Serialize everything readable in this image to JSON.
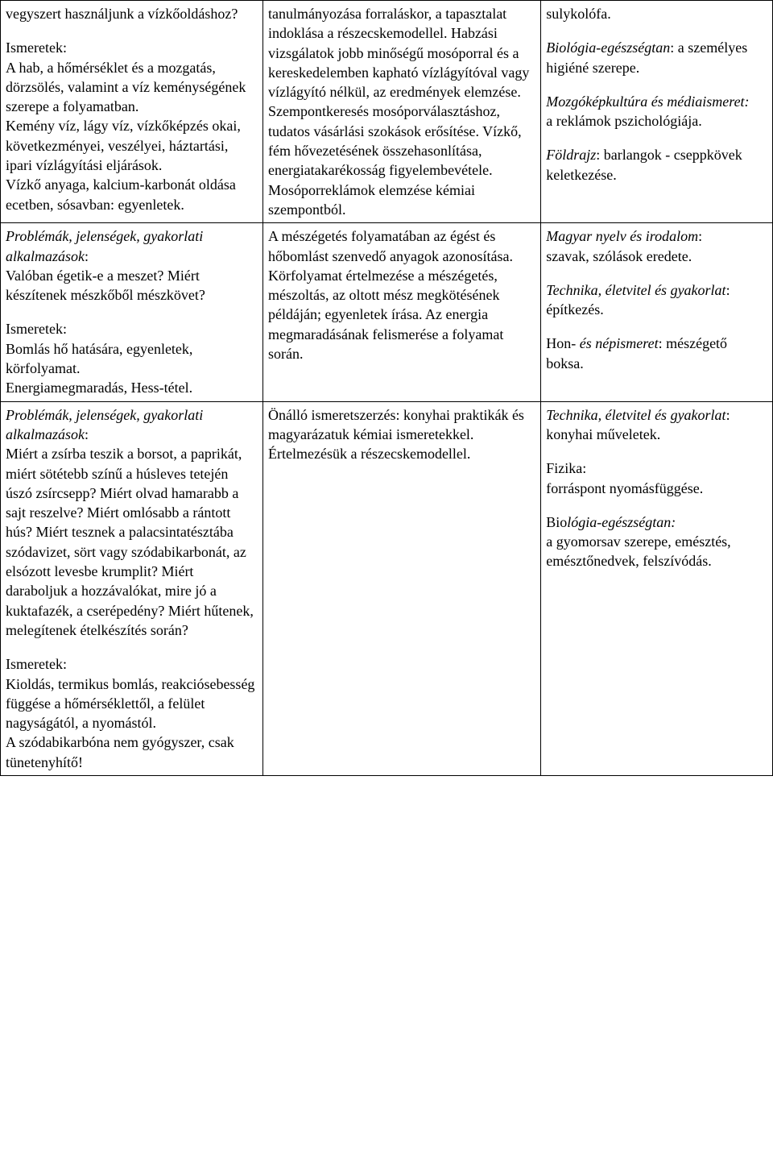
{
  "table": {
    "rows": [
      {
        "col1": {
          "segments": [
            {
              "text": "vegyszert használjunk a vízkőoldáshoz?",
              "style": "normal"
            },
            {
              "text": "",
              "style": "spacer"
            },
            {
              "text": "Ismeretek:",
              "style": "normal"
            },
            {
              "text": "A hab, a hőmérséklet és a mozgatás, dörzsölés, valamint a víz keménységének szerepe a folyamatban.",
              "style": "normal"
            },
            {
              "text": "Kemény víz, lágy víz, vízkőképzés okai, következményei, veszélyei, háztartási, ipari vízlágyítási eljárások.",
              "style": "normal"
            },
            {
              "text": "Vízkő anyaga, kalcium-karbonát oldása ecetben, sósavban: egyenletek.",
              "style": "normal"
            }
          ]
        },
        "col2": {
          "segments": [
            {
              "text": "tanulmányozása forraláskor, a tapasztalat indoklása a részecskemodellel. Habzási vizsgálatok jobb minőségű mosóporral és a kereskedelemben kapható vízlágyítóval vagy vízlágyító nélkül, az eredmények elemzése. Szempontkeresés mosóporválasztáshoz, tudatos vásárlási szokások erősítése. Vízkő, fém hővezetésének összehasonlítása, energiatakarékosság figyelembevétele. Mosóporreklámok elemzése kémiai szempontból.",
              "style": "normal"
            }
          ]
        },
        "col3": {
          "segments": [
            {
              "text": "sulykolófa.",
              "style": "normal"
            },
            {
              "text": "",
              "style": "spacer"
            },
            {
              "textParts": [
                {
                  "t": "Biológia-egészségtan",
                  "s": "italic"
                },
                {
                  "t": ": a személyes higiéné szerepe.",
                  "s": "normal"
                }
              ]
            },
            {
              "text": "",
              "style": "spacer"
            },
            {
              "textParts": [
                {
                  "t": "Mozgóképkultúra és médiaismeret:",
                  "s": "italic"
                }
              ]
            },
            {
              "text": "a reklámok pszichológiája.",
              "style": "normal"
            },
            {
              "text": "",
              "style": "spacer"
            },
            {
              "textParts": [
                {
                  "t": "Földrajz",
                  "s": "italic"
                },
                {
                  "t": ": barlangok - cseppkövek keletkezése.",
                  "s": "normal"
                }
              ]
            }
          ]
        }
      },
      {
        "col1": {
          "segments": [
            {
              "textParts": [
                {
                  "t": "Problémák, jelenségek, gyakorlati alkalmazások",
                  "s": "italic"
                },
                {
                  "t": ":",
                  "s": "normal"
                }
              ]
            },
            {
              "text": "Valóban égetik-e a meszet? Miért készítenek mészkőből mészkövet?",
              "style": "normal"
            },
            {
              "text": "",
              "style": "spacer"
            },
            {
              "text": "Ismeretek:",
              "style": "normal"
            },
            {
              "text": "Bomlás hő hatására, egyenletek, körfolyamat.",
              "style": "normal"
            },
            {
              "text": "Energiamegmaradás, Hess-tétel.",
              "style": "normal"
            }
          ]
        },
        "col2": {
          "segments": [
            {
              "text": "A mészégetés folyamatában az égést és hőbomlást szenvedő anyagok azonosítása. Körfolyamat értelmezése a mészégetés, mészoltás, az oltott mész megkötésének példáján; egyenletek írása. Az energia megmaradásának felismerése a folyamat során.",
              "style": "normal"
            }
          ]
        },
        "col3": {
          "segments": [
            {
              "textParts": [
                {
                  "t": "Magyar nyelv és irodalom",
                  "s": "italic"
                },
                {
                  "t": ":",
                  "s": "normal"
                }
              ]
            },
            {
              "text": "szavak, szólások eredete.",
              "style": "normal"
            },
            {
              "text": "",
              "style": "spacer"
            },
            {
              "textParts": [
                {
                  "t": "Technika, életvitel és gyakorlat",
                  "s": "italic"
                },
                {
                  "t": ":",
                  "s": "normal"
                }
              ]
            },
            {
              "text": "építkezés.",
              "style": "normal"
            },
            {
              "text": "",
              "style": "spacer"
            },
            {
              "textParts": [
                {
                  "t": "Hon- ",
                  "s": "normal"
                },
                {
                  "t": "és népismeret",
                  "s": "italic"
                },
                {
                  "t": ": mészégető boksa.",
                  "s": "normal"
                }
              ]
            }
          ]
        }
      },
      {
        "col1": {
          "segments": [
            {
              "textParts": [
                {
                  "t": "Problémák, jelenségek, gyakorlati alkalmazások",
                  "s": "italic"
                },
                {
                  "t": ":",
                  "s": "normal"
                }
              ]
            },
            {
              "text": "Miért a zsírba teszik a borsot, a paprikát, miért sötétebb színű a húsleves tetején úszó zsírcsepp? Miért olvad hamarabb a sajt reszelve? Miért omlósabb a rántott hús? Miért tesznek a palacsintatésztába szódavizet, sört vagy szódabikarbonát, az elsózott levesbe krumplit? Miért daraboljuk a hozzávalókat, mire jó a kuktafazék, a cserépedény? Miért hűtenek, melegítenek ételkészítés során?",
              "style": "normal"
            },
            {
              "text": "",
              "style": "spacer"
            },
            {
              "text": "Ismeretek:",
              "style": "normal"
            },
            {
              "text": "Kioldás, termikus bomlás, reakciósebesség függése a hőmérséklettől, a felület nagyságától, a nyomástól.",
              "style": "normal"
            },
            {
              "text": "A szódabikarbóna nem gyógyszer, csak tünetenyhítő!",
              "style": "normal"
            }
          ]
        },
        "col2": {
          "segments": [
            {
              "text": "Önálló ismeretszerzés: konyhai praktikák és magyarázatuk kémiai ismeretekkel. Értelmezésük a részecskemodellel.",
              "style": "normal"
            }
          ]
        },
        "col3": {
          "segments": [
            {
              "textParts": [
                {
                  "t": "Technika, életvitel és gyakorlat",
                  "s": "italic"
                },
                {
                  "t": ":",
                  "s": "normal"
                }
              ]
            },
            {
              "text": "konyhai műveletek.",
              "style": "normal"
            },
            {
              "text": "",
              "style": "spacer"
            },
            {
              "text": "Fizika:",
              "style": "normal"
            },
            {
              "text": "forráspont nyomásfüggése.",
              "style": "normal"
            },
            {
              "text": "",
              "style": "spacer"
            },
            {
              "textParts": [
                {
                  "t": "Bio",
                  "s": "normal"
                },
                {
                  "t": "lógia-egészségtan:",
                  "s": "italic"
                }
              ]
            },
            {
              "text": "a gyomorsav szerepe, emésztés, emésztőnedvek, felszívódás.",
              "style": "normal"
            }
          ]
        }
      }
    ]
  }
}
